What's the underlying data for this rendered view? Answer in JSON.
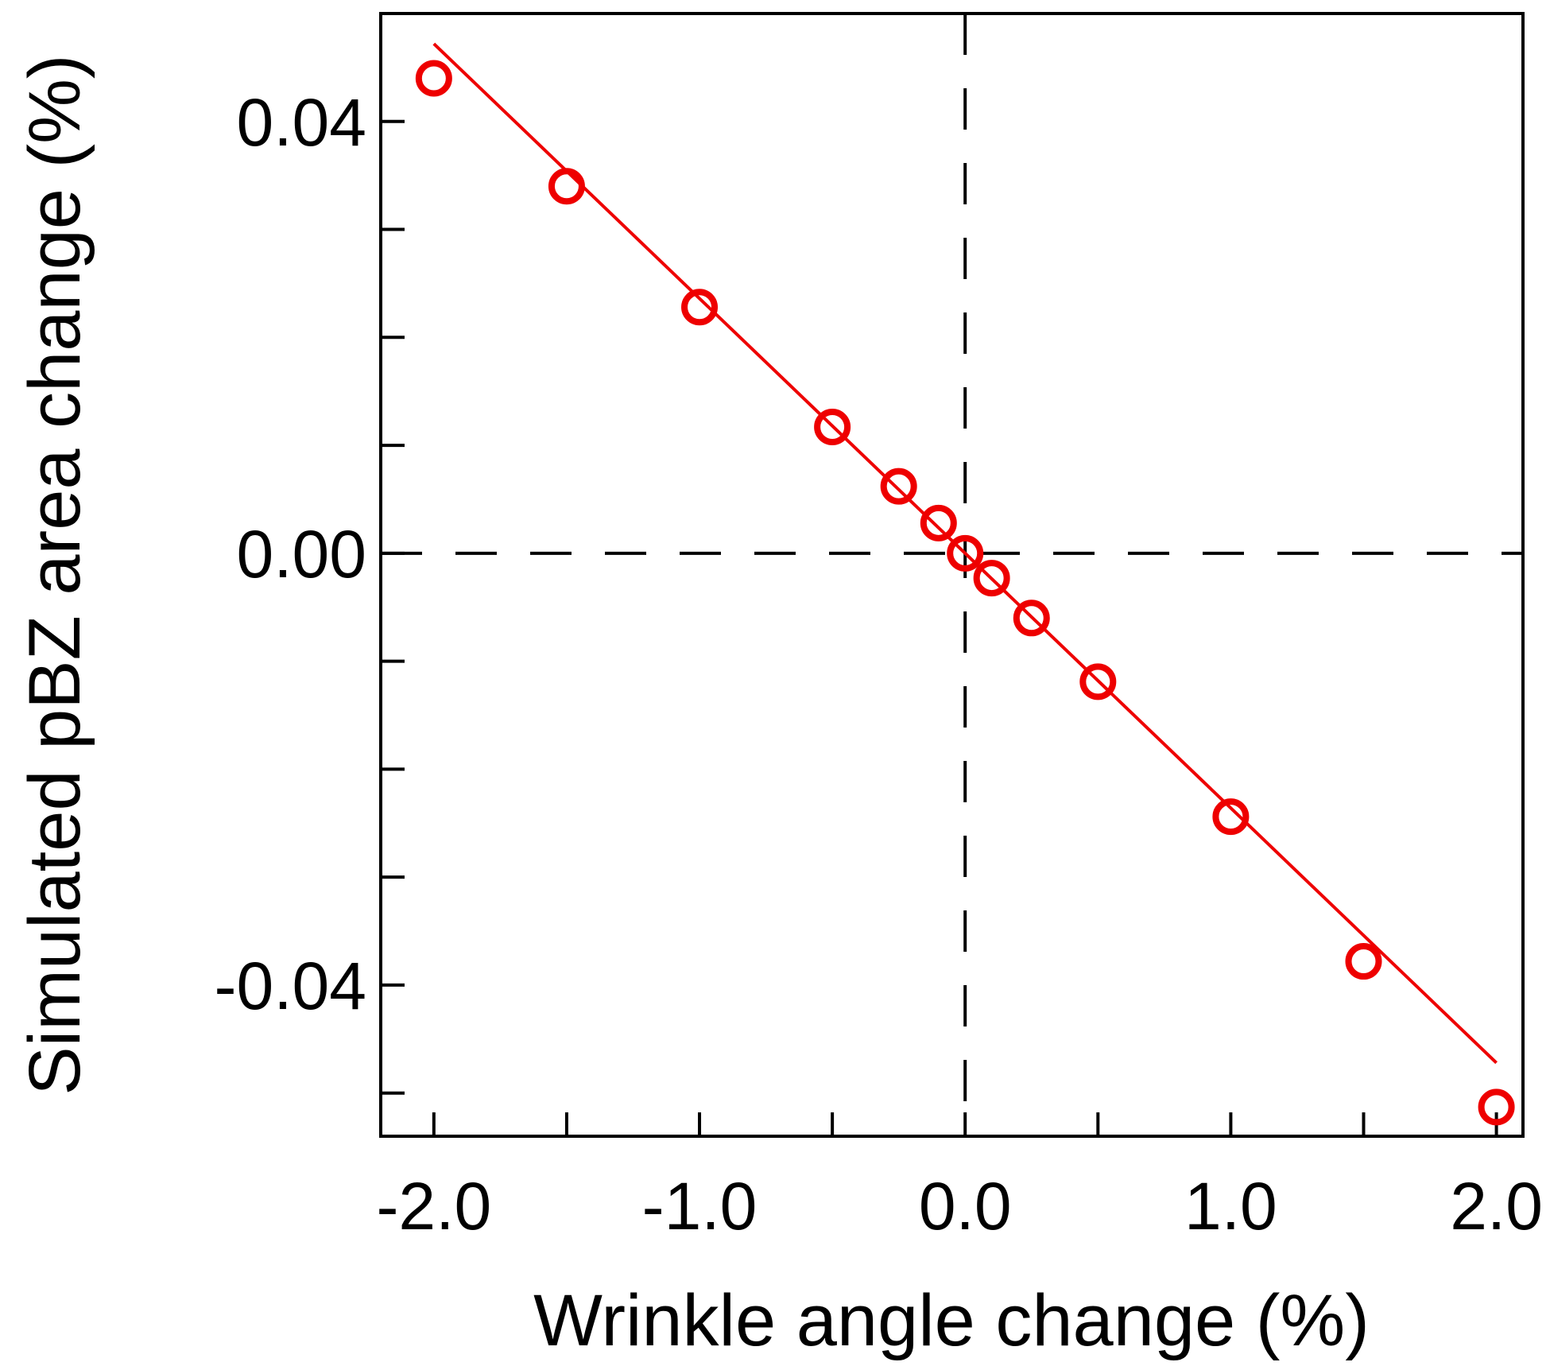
{
  "chart_data": {
    "type": "scatter",
    "xlabel": "Wrinkle angle change (%)",
    "ylabel": "Simulated pBZ area change (%)",
    "xlim": [
      -2.2,
      2.1
    ],
    "ylim": [
      -0.054,
      0.05
    ],
    "x_ticks": [
      -2.0,
      -1.5,
      -1.0,
      -0.5,
      0.0,
      0.5,
      1.0,
      1.5,
      2.0
    ],
    "x_tick_labels": [
      {
        "value": -2.0,
        "label": "-2.0"
      },
      {
        "value": -1.0,
        "label": "-1.0"
      },
      {
        "value": 0.0,
        "label": "0.0"
      },
      {
        "value": 1.0,
        "label": "1.0"
      },
      {
        "value": 2.0,
        "label": "2.0"
      }
    ],
    "y_ticks": [
      0.04,
      0.03,
      0.02,
      0.01,
      0.0,
      -0.01,
      -0.02,
      -0.03,
      -0.04,
      -0.05
    ],
    "y_tick_labels": [
      {
        "value": 0.04,
        "label": "0.04"
      },
      {
        "value": 0.0,
        "label": "0.00"
      },
      {
        "value": -0.04,
        "label": "-0.04"
      }
    ],
    "reference_lines": {
      "x": 0.0,
      "y": 0.0,
      "style": "dashed",
      "color": "#000000"
    },
    "series": [
      {
        "kind": "points",
        "marker": "open-circle",
        "color": "#ee0000",
        "points": [
          {
            "x": -2.0,
            "y": 0.044
          },
          {
            "x": -1.5,
            "y": 0.034
          },
          {
            "x": -1.0,
            "y": 0.0228
          },
          {
            "x": -0.5,
            "y": 0.0117
          },
          {
            "x": -0.25,
            "y": 0.0062
          },
          {
            "x": -0.1,
            "y": 0.0028
          },
          {
            "x": 0.0,
            "y": 0.0
          },
          {
            "x": 0.1,
            "y": -0.0023
          },
          {
            "x": 0.25,
            "y": -0.006
          },
          {
            "x": 0.5,
            "y": -0.0119
          },
          {
            "x": 1.0,
            "y": -0.0244
          },
          {
            "x": 1.5,
            "y": -0.0378
          },
          {
            "x": 2.0,
            "y": -0.0513
          }
        ]
      },
      {
        "kind": "fit-line",
        "color": "#ee0000",
        "points": [
          {
            "x": -2.0,
            "y": 0.0472
          },
          {
            "x": 2.0,
            "y": -0.0472
          }
        ]
      }
    ],
    "grid": false,
    "legend": "none"
  }
}
